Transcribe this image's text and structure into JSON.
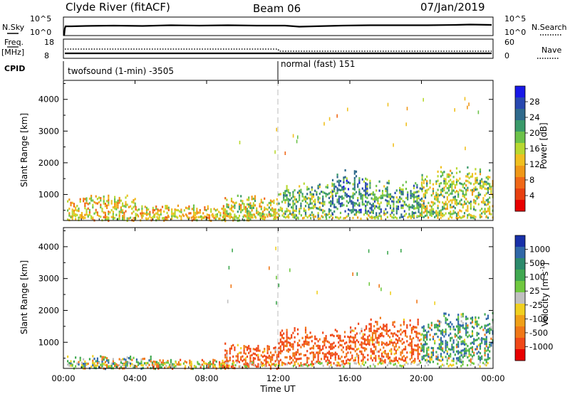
{
  "header": {
    "station": "Clyde River (fitACF)",
    "beam": "Beam 06",
    "date": "07/Jan/2019"
  },
  "top_panels": {
    "nsky_label": "N.Sky",
    "nsky_ticks": [
      "10^5",
      "10^0"
    ],
    "nsearch_label": "N.Search",
    "nsearch_ticks": [
      "10^5",
      "10^0"
    ],
    "freq_label": "Freq.",
    "freq_unit": "[MHz]",
    "freq_ticks": [
      "18",
      "8"
    ],
    "nave_label": "Nave",
    "nave_ticks": [
      "60",
      "0"
    ],
    "cpid_label": "CPID",
    "cpid_segments": [
      {
        "text": "twofsound (1-min) -3505",
        "start_hour": 0
      },
      {
        "text": "normal (fast) 151",
        "start_hour": 12
      }
    ]
  },
  "time_axis": {
    "label": "Time UT",
    "ticks": [
      "00:00",
      "04:00",
      "08:00",
      "12:00",
      "16:00",
      "20:00",
      "00:00"
    ]
  },
  "chart_data": [
    {
      "type": "heatmap",
      "panel": "power",
      "ylabel": "Slant Range [km]",
      "y_ticks": [
        "1000",
        "2000",
        "3000",
        "4000"
      ],
      "ylim": [
        180,
        4600
      ],
      "xlim_hours": [
        0,
        24
      ],
      "colorbar": {
        "label": "Power [dB]",
        "tick_labels": [
          "4",
          "8",
          "12",
          "16",
          "20",
          "24",
          "28"
        ],
        "colors": [
          "#1818e8",
          "#2848b0",
          "#2f6a8c",
          "#3a9a6a",
          "#6cc24a",
          "#b8d830",
          "#f0c020",
          "#f09818",
          "#f06818",
          "#e84010",
          "#e80000"
        ]
      },
      "echo_regions": [
        {
          "t_start": 0.2,
          "t_end": 4.0,
          "range_min": 200,
          "range_max": 1000,
          "level": 12
        },
        {
          "t_start": 4.0,
          "t_end": 9.0,
          "range_min": 200,
          "range_max": 700,
          "level": 12
        },
        {
          "t_start": 9.0,
          "t_end": 12.0,
          "range_min": 200,
          "range_max": 1000,
          "level": 14
        },
        {
          "t_start": 12.0,
          "t_end": 15.0,
          "range_min": 300,
          "range_max": 1400,
          "level": 18
        },
        {
          "t_start": 15.0,
          "t_end": 17.0,
          "range_min": 400,
          "range_max": 1800,
          "level": 22
        },
        {
          "t_start": 17.0,
          "t_end": 20.0,
          "range_min": 300,
          "range_max": 1500,
          "level": 20
        },
        {
          "t_start": 20.0,
          "t_end": 24.0,
          "range_min": 300,
          "range_max": 1900,
          "level": 16
        }
      ]
    },
    {
      "type": "heatmap",
      "panel": "velocity",
      "ylabel": "Slant Range [km]",
      "y_ticks": [
        "1000",
        "2000",
        "3000",
        "4000"
      ],
      "ylim": [
        180,
        4600
      ],
      "xlim_hours": [
        0,
        24
      ],
      "colorbar": {
        "label": "Velocity [m s^-1]",
        "tick_labels": [
          "1000",
          "500",
          "100",
          "25",
          "-25",
          "-100",
          "-500",
          "-1000"
        ],
        "colors": [
          "#1830a8",
          "#3068a8",
          "#2c8a6c",
          "#40a850",
          "#70c840",
          "#c0c0c0",
          "#f0d020",
          "#f0a018",
          "#f07818",
          "#f04818",
          "#e80000"
        ]
      },
      "echo_regions": [
        {
          "t_start": 0.2,
          "t_end": 5.0,
          "range_min": 200,
          "range_max": 600,
          "velocity": 100
        },
        {
          "t_start": 5.0,
          "t_end": 9.0,
          "range_min": 200,
          "range_max": 500,
          "velocity": -100
        },
        {
          "t_start": 9.0,
          "t_end": 12.0,
          "range_min": 200,
          "range_max": 1000,
          "velocity": -300
        },
        {
          "t_start": 12.0,
          "t_end": 16.0,
          "range_min": 300,
          "range_max": 1500,
          "velocity": -400
        },
        {
          "t_start": 16.0,
          "t_end": 20.0,
          "range_min": 400,
          "range_max": 1800,
          "velocity": -300
        },
        {
          "t_start": 20.0,
          "t_end": 24.0,
          "range_min": 400,
          "range_max": 2000,
          "velocity": 200
        }
      ]
    }
  ],
  "colors": {
    "axis": "#000000",
    "dashed_marker": "#bbbbbb"
  }
}
